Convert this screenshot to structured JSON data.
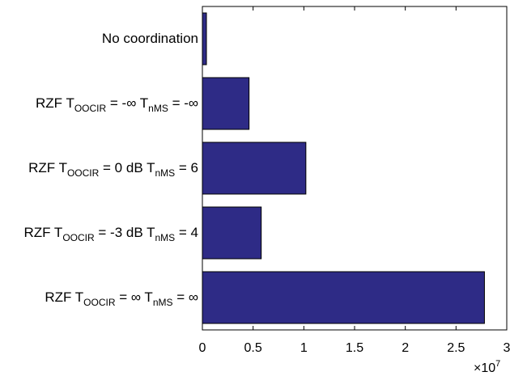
{
  "chart_data": {
    "type": "bar",
    "orientation": "horizontal",
    "categories": [
      "No coordination",
      "RZF T_OOCIR = -∞ T_nMS = -∞",
      "RZF T_OOCIR = 0 dB T_nMS = 6",
      "RZF T_OOCIR = -3 dB T_nMS = 4",
      "RZF T_OOCIR = ∞ T_nMS = ∞"
    ],
    "category_parts": [
      {
        "pre": "No coordination",
        "sub1": "",
        "mid": "",
        "sub2": "",
        "post": ""
      },
      {
        "pre": "RZF T",
        "sub1": "OOCIR",
        "mid": " = -∞ T",
        "sub2": "nMS",
        "post": " = -∞"
      },
      {
        "pre": "RZF T",
        "sub1": "OOCIR",
        "mid": " = 0 dB T",
        "sub2": "nMS",
        "post": " = 6"
      },
      {
        "pre": "RZF T",
        "sub1": "OOCIR",
        "mid": " = -3 dB T",
        "sub2": "nMS",
        "post": " = 4"
      },
      {
        "pre": "RZF T",
        "sub1": "OOCIR",
        "mid": " = ∞ T",
        "sub2": "nMS",
        "post": " = ∞"
      }
    ],
    "values": [
      400000,
      4600000,
      10200000,
      5800000,
      27800000
    ],
    "xlim": [
      0,
      30000000
    ],
    "xticks": [
      0,
      5000000,
      10000000,
      15000000,
      20000000,
      25000000,
      30000000
    ],
    "xtick_labels": [
      "0",
      "0.5",
      "1",
      "1.5",
      "2",
      "2.5",
      "3"
    ],
    "x_multiplier_base": "×10",
    "x_multiplier_exp": "7",
    "bar_color": "#2e2b86",
    "grid": false,
    "title": "",
    "xlabel": "",
    "ylabel": ""
  }
}
